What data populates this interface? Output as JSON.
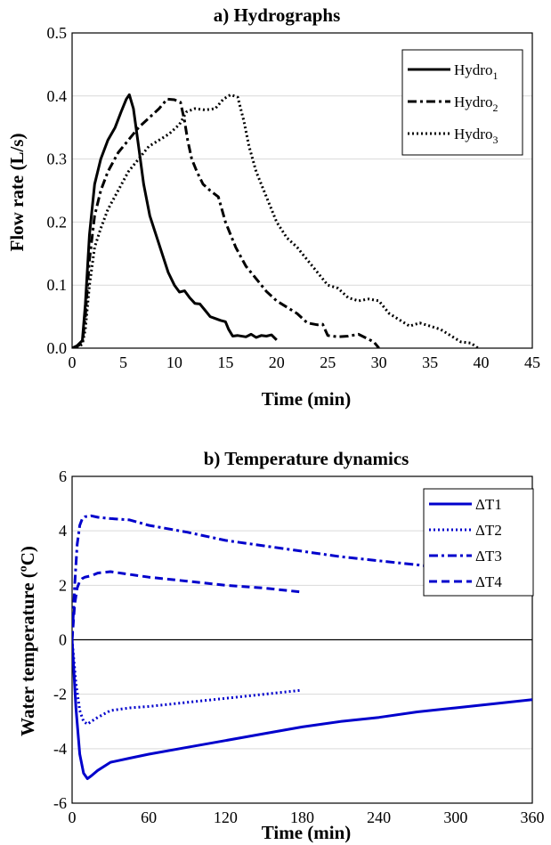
{
  "chart_data": [
    {
      "type": "line",
      "title": "a) Hydrographs",
      "xlabel": "Time (min)",
      "ylabel": "Flow rate (L/s)",
      "xlim": [
        0,
        45
      ],
      "ylim": [
        0,
        0.5
      ],
      "xticks": [
        "0",
        "5",
        "10",
        "15",
        "20",
        "25",
        "30",
        "35",
        "40",
        "45"
      ],
      "yticks": [
        "0.0",
        "0.1",
        "0.2",
        "0.3",
        "0.4",
        "0.5"
      ],
      "grid": true,
      "legend_position": "top-right",
      "colors": {
        "line": "#000000",
        "grid": "#d9d9d9"
      },
      "series": [
        {
          "name": "Hydro",
          "subscript": "1",
          "dash": "solid",
          "x": [
            0,
            0.5,
            1,
            1.3,
            1.7,
            2.2,
            2.8,
            3.5,
            4.2,
            4.8,
            5.3,
            5.6,
            6.0,
            6.5,
            7.0,
            7.6,
            8.2,
            8.8,
            9.4,
            10.0,
            10.5,
            11.0,
            11.5,
            12.0,
            12.5,
            13.0,
            13.5,
            14.0,
            14.5,
            15.0,
            15.3,
            15.7,
            16.2,
            17.0,
            17.5,
            18.0,
            18.5,
            19.0,
            19.5,
            20.0
          ],
          "y": [
            0.0,
            0.004,
            0.012,
            0.07,
            0.18,
            0.26,
            0.3,
            0.33,
            0.35,
            0.375,
            0.395,
            0.402,
            0.38,
            0.32,
            0.26,
            0.21,
            0.18,
            0.15,
            0.12,
            0.1,
            0.089,
            0.091,
            0.08,
            0.071,
            0.07,
            0.06,
            0.05,
            0.047,
            0.044,
            0.042,
            0.03,
            0.019,
            0.02,
            0.018,
            0.022,
            0.017,
            0.02,
            0.019,
            0.021,
            0.013
          ]
        },
        {
          "name": "Hydro",
          "subscript": "2",
          "dash": "dashdot",
          "x": [
            0,
            0.5,
            1,
            1.3,
            1.7,
            2.2,
            2.8,
            3.5,
            4.5,
            5.5,
            6.5,
            7.5,
            8.5,
            9.3,
            10.0,
            10.6,
            11.0,
            11.3,
            11.7,
            12.2,
            12.8,
            13.5,
            14.3,
            15.0,
            16.0,
            17.0,
            18.0,
            19.0,
            20.0,
            21.0,
            22.0,
            23.0,
            24.0,
            24.5,
            25.0,
            26.0,
            27.0,
            28.0,
            29.0,
            29.5,
            30.0
          ],
          "y": [
            0.0,
            0.003,
            0.008,
            0.05,
            0.14,
            0.21,
            0.25,
            0.28,
            0.31,
            0.33,
            0.35,
            0.365,
            0.38,
            0.395,
            0.394,
            0.39,
            0.36,
            0.33,
            0.3,
            0.28,
            0.26,
            0.25,
            0.24,
            0.2,
            0.16,
            0.13,
            0.11,
            0.09,
            0.075,
            0.065,
            0.055,
            0.04,
            0.037,
            0.038,
            0.02,
            0.018,
            0.019,
            0.022,
            0.014,
            0.01,
            0.0
          ]
        },
        {
          "name": "Hydro",
          "subscript": "3",
          "dash": "dotted",
          "x": [
            0,
            0.5,
            1,
            1.3,
            1.7,
            2.2,
            2.8,
            3.5,
            4.5,
            5.5,
            6.5,
            7.5,
            8.5,
            9.5,
            10.5,
            11.2,
            12.0,
            13.0,
            14.0,
            14.8,
            15.5,
            16.2,
            16.8,
            17.3,
            18.0,
            19.0,
            20.0,
            21.0,
            22.0,
            23.0,
            24.0,
            25.0,
            26.0,
            27.0,
            28.0,
            29.0,
            30.0,
            31.0,
            32.0,
            33.0,
            34.0,
            35.0,
            36.0,
            37.0,
            38.0,
            39.0,
            39.7
          ],
          "y": [
            0.0,
            0.002,
            0.006,
            0.03,
            0.1,
            0.16,
            0.19,
            0.22,
            0.25,
            0.28,
            0.3,
            0.32,
            0.33,
            0.34,
            0.355,
            0.375,
            0.38,
            0.378,
            0.38,
            0.395,
            0.402,
            0.398,
            0.36,
            0.32,
            0.28,
            0.24,
            0.2,
            0.175,
            0.16,
            0.14,
            0.12,
            0.1,
            0.095,
            0.08,
            0.075,
            0.078,
            0.075,
            0.055,
            0.045,
            0.035,
            0.04,
            0.035,
            0.03,
            0.02,
            0.01,
            0.008,
            0.0
          ]
        }
      ]
    },
    {
      "type": "line",
      "title": "b) Temperature dynamics",
      "xlabel": "Time (min)",
      "ylabel": "Water temperature (ºC)",
      "xlim": [
        0,
        360
      ],
      "ylim": [
        -6,
        6
      ],
      "xticks": [
        "0",
        "60",
        "120",
        "180",
        "240",
        "300",
        "360"
      ],
      "yticks": [
        "-6",
        "-4",
        "-2",
        "0",
        "2",
        "4",
        "6"
      ],
      "grid": true,
      "legend_position": "top-right",
      "colors": {
        "line": "#0000cc",
        "grid": "#d9d9d9",
        "zero_line": "#000000"
      },
      "series": [
        {
          "name": "ΔT1",
          "dash": "solid",
          "x": [
            0,
            3,
            6,
            9,
            12,
            15,
            20,
            30,
            45,
            60,
            90,
            120,
            150,
            180,
            210,
            240,
            270,
            300,
            330,
            360
          ],
          "y": [
            0,
            -2.5,
            -4.2,
            -4.9,
            -5.1,
            -5.0,
            -4.8,
            -4.5,
            -4.35,
            -4.2,
            -3.95,
            -3.7,
            -3.45,
            -3.2,
            -3.0,
            -2.85,
            -2.65,
            -2.5,
            -2.35,
            -2.2
          ]
        },
        {
          "name": "ΔT2",
          "dash": "dotted",
          "x": [
            0,
            3,
            6,
            9,
            12,
            15,
            20,
            30,
            45,
            60,
            90,
            120,
            150,
            180
          ],
          "y": [
            0,
            -1.6,
            -2.6,
            -3.0,
            -3.1,
            -3.0,
            -2.85,
            -2.6,
            -2.5,
            -2.45,
            -2.3,
            -2.15,
            -2.0,
            -1.85
          ]
        },
        {
          "name": "ΔT3",
          "dash": "dashdot",
          "x": [
            0,
            2,
            4,
            6,
            8,
            10,
            15,
            20,
            30,
            45,
            60,
            90,
            120,
            150,
            180,
            210,
            240,
            270,
            300,
            330,
            360
          ],
          "y": [
            0,
            2.0,
            3.5,
            4.2,
            4.45,
            4.52,
            4.55,
            4.5,
            4.45,
            4.4,
            4.2,
            3.95,
            3.65,
            3.45,
            3.25,
            3.05,
            2.9,
            2.75,
            2.6,
            2.45,
            2.35
          ]
        },
        {
          "name": "ΔT4",
          "dash": "dashed",
          "x": [
            0,
            2,
            4,
            6,
            8,
            10,
            15,
            20,
            30,
            45,
            60,
            90,
            120,
            150,
            180
          ],
          "y": [
            0,
            1.3,
            1.9,
            2.15,
            2.25,
            2.3,
            2.35,
            2.45,
            2.5,
            2.4,
            2.3,
            2.15,
            2.0,
            1.9,
            1.75
          ]
        }
      ]
    }
  ]
}
